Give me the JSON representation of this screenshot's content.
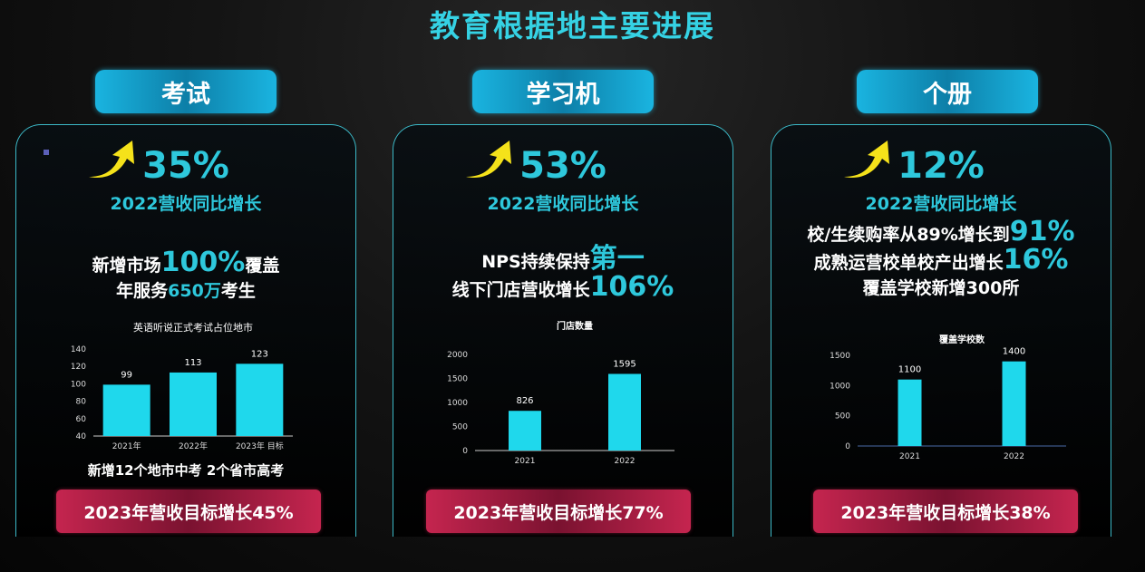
{
  "title": "教育根据地主要进展",
  "colors": {
    "accent": "#2ec8dc",
    "bar": "#1fd8ec",
    "goal_bg": "#b02046",
    "arrow": "#f5e21a"
  },
  "panels": [
    {
      "tag": "考试",
      "growth_pct": "35%",
      "growth_label": "2022营收同比增长",
      "lines": [
        [
          {
            "t": "新增市场",
            "h": false
          },
          {
            "t": "100%",
            "h": true,
            "big": true
          },
          {
            "t": "覆盖",
            "h": false
          }
        ],
        [
          {
            "t": "年服务",
            "h": false
          },
          {
            "t": "650万",
            "h": true
          },
          {
            "t": "考生",
            "h": false
          }
        ]
      ],
      "footnote": "新增12个地市中考 2个省市高考",
      "goal": "2023年营收目标增长45%"
    },
    {
      "tag": "学习机",
      "growth_pct": "53%",
      "growth_label": "2022营收同比增长",
      "lines": [
        [
          {
            "t": "NPS持续保持",
            "h": false
          },
          {
            "t": "第一",
            "h": true,
            "big": true
          }
        ],
        [
          {
            "t": "线下门店营收增长",
            "h": false
          },
          {
            "t": "106%",
            "h": true,
            "big": true
          }
        ]
      ],
      "footnote": "",
      "goal": "2023年营收目标增长77%"
    },
    {
      "tag": "个册",
      "growth_pct": "12%",
      "growth_label": "2022营收同比增长",
      "lines": [
        [
          {
            "t": "校/生续购率从89%增长到",
            "h": false
          },
          {
            "t": "91%",
            "h": true,
            "big": true
          }
        ],
        [
          {
            "t": "成熟运营校单校产出增长",
            "h": false
          },
          {
            "t": "16%",
            "h": true,
            "big": true
          }
        ],
        [
          {
            "t": "覆盖学校新增300所",
            "h": false
          }
        ]
      ],
      "footnote": "",
      "goal": "2023年营收目标增长38%"
    }
  ],
  "chart_data": [
    {
      "type": "bar",
      "title": "英语听说正式考试占位地市",
      "categories": [
        "2021年",
        "2022年",
        "2023年 目标"
      ],
      "values": [
        99,
        113,
        123
      ],
      "xlabel": "",
      "ylabel": "",
      "ylim": [
        40,
        140
      ],
      "yticks": [
        40,
        60,
        80,
        100,
        120,
        140
      ],
      "grid": false,
      "legend": null
    },
    {
      "type": "bar",
      "title": "门店数量",
      "categories": [
        "2021",
        "2022"
      ],
      "values": [
        826,
        1595
      ],
      "xlabel": "",
      "ylabel": "",
      "ylim": [
        0,
        2000
      ],
      "yticks": [
        0,
        500,
        1000,
        1500,
        2000
      ],
      "grid": false,
      "legend": null
    },
    {
      "type": "bar",
      "title": "覆盖学校数",
      "categories": [
        "2021",
        "2022"
      ],
      "values": [
        1100,
        1400
      ],
      "xlabel": "",
      "ylabel": "",
      "ylim": [
        0,
        1500
      ],
      "yticks": [
        0,
        500,
        1000,
        1500
      ],
      "grid": false,
      "legend": null
    }
  ]
}
